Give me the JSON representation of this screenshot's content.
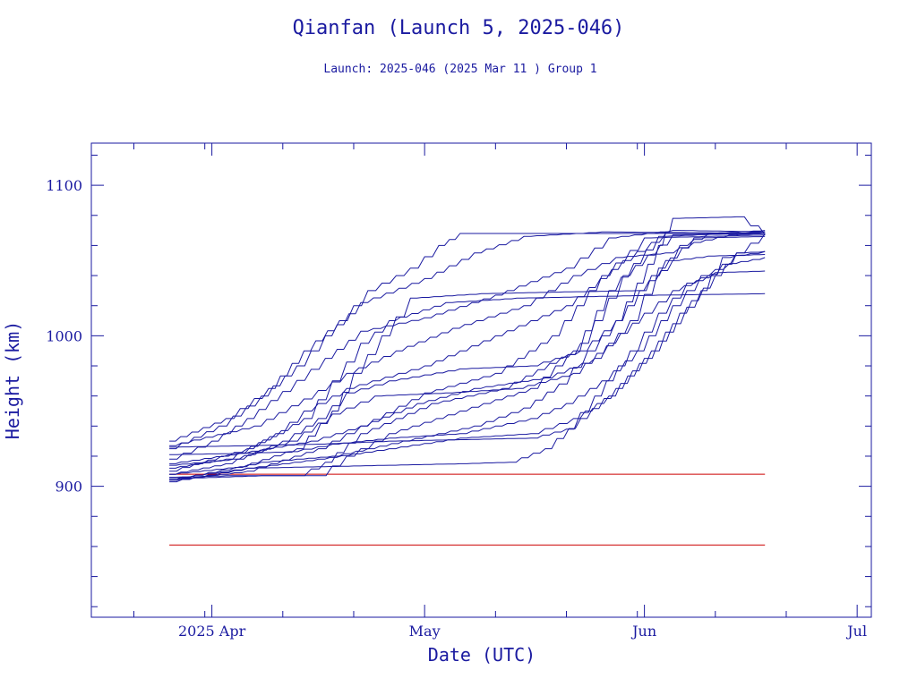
{
  "chart_data": {
    "type": "line",
    "title": "Qianfan (Launch 5, 2025-046)",
    "subtitle": "Launch: 2025-046  (2025 Mar 11 )  Group 1",
    "xlabel": "Date (UTC)",
    "ylabel": "Height (km)",
    "xlim": [
      "2025-03-15",
      "2025-07-03"
    ],
    "ylim": [
      813,
      1128
    ],
    "x_ticks": [
      {
        "date": "2025-04-01",
        "label": "2025 Apr"
      },
      {
        "date": "2025-05-01",
        "label": "May"
      },
      {
        "date": "2025-06-01",
        "label": "Jun"
      },
      {
        "date": "2025-07-01",
        "label": "Jul"
      }
    ],
    "y_ticks": [
      {
        "value": 900,
        "label": "900"
      },
      {
        "value": 1000,
        "label": "1000"
      },
      {
        "value": 1100,
        "label": "1100"
      }
    ],
    "grid": false,
    "colors": {
      "satellites": "#1a1aa0",
      "reference": "#cc0000",
      "frame": "#1a1aa0"
    },
    "reference_lines": [
      {
        "y": 908,
        "x": [
          "2025-03-26",
          "2025-06-18"
        ]
      },
      {
        "y": 861,
        "x": [
          "2025-03-26",
          "2025-06-18"
        ]
      }
    ],
    "series": [
      {
        "points": [
          [
            "2025-03-26",
            906
          ],
          [
            "2025-04-03",
            907
          ],
          [
            "2025-04-13",
            907
          ],
          [
            "2025-04-17",
            916
          ],
          [
            "2025-04-22",
            935
          ],
          [
            "2025-05-02",
            955
          ],
          [
            "2025-05-12",
            965
          ],
          [
            "2025-05-22",
            990
          ],
          [
            "2025-05-27",
            1030
          ],
          [
            "2025-06-03",
            1066
          ],
          [
            "2025-06-18",
            1069
          ]
        ]
      },
      {
        "points": [
          [
            "2025-03-26",
            905
          ],
          [
            "2025-04-08",
            907
          ],
          [
            "2025-04-16",
            907
          ],
          [
            "2025-04-20",
            920
          ],
          [
            "2025-04-26",
            935
          ],
          [
            "2025-05-06",
            950
          ],
          [
            "2025-05-16",
            965
          ],
          [
            "2025-05-23",
            995
          ],
          [
            "2025-05-29",
            1040
          ],
          [
            "2025-06-05",
            1067
          ],
          [
            "2025-06-18",
            1068
          ]
        ]
      },
      {
        "points": [
          [
            "2025-03-26",
            904
          ],
          [
            "2025-04-06",
            910
          ],
          [
            "2025-04-16",
            925
          ],
          [
            "2025-04-22",
            940
          ],
          [
            "2025-05-01",
            962
          ],
          [
            "2025-05-11",
            975
          ],
          [
            "2025-05-19",
            1000
          ],
          [
            "2025-05-26",
            1040
          ],
          [
            "2025-06-01",
            1065
          ],
          [
            "2025-06-18",
            1067
          ]
        ]
      },
      {
        "points": [
          [
            "2025-03-26",
            912
          ],
          [
            "2025-04-03",
            918
          ],
          [
            "2025-04-10",
            935
          ],
          [
            "2025-04-14",
            950
          ],
          [
            "2025-04-20",
            965
          ],
          [
            "2025-05-01",
            980
          ],
          [
            "2025-05-11",
            1000
          ],
          [
            "2025-05-21",
            1020
          ],
          [
            "2025-05-29",
            1050
          ],
          [
            "2025-06-04",
            1068
          ],
          [
            "2025-06-18",
            1068
          ]
        ]
      },
      {
        "points": [
          [
            "2025-03-26",
            918
          ],
          [
            "2025-04-01",
            930
          ],
          [
            "2025-04-06",
            945
          ],
          [
            "2025-04-11",
            963
          ],
          [
            "2025-04-17",
            985
          ],
          [
            "2025-04-22",
            1003
          ],
          [
            "2025-05-01",
            1012
          ],
          [
            "2025-05-11",
            1027
          ],
          [
            "2025-05-21",
            1045
          ],
          [
            "2025-05-27",
            1065
          ],
          [
            "2025-06-05",
            1070
          ],
          [
            "2025-06-18",
            1069
          ]
        ]
      },
      {
        "points": [
          [
            "2025-03-26",
            925
          ],
          [
            "2025-04-02",
            940
          ],
          [
            "2025-04-08",
            960
          ],
          [
            "2025-04-13",
            980
          ],
          [
            "2025-04-17",
            1000
          ],
          [
            "2025-04-22",
            1022
          ],
          [
            "2025-05-01",
            1038
          ],
          [
            "2025-05-08",
            1055
          ],
          [
            "2025-05-15",
            1066
          ],
          [
            "2025-05-26",
            1069
          ],
          [
            "2025-06-18",
            1068
          ]
        ]
      },
      {
        "points": [
          [
            "2025-03-26",
            930
          ],
          [
            "2025-04-03",
            945
          ],
          [
            "2025-04-09",
            965
          ],
          [
            "2025-04-14",
            990
          ],
          [
            "2025-04-19",
            1010
          ],
          [
            "2025-04-23",
            1030
          ],
          [
            "2025-04-29",
            1045
          ],
          [
            "2025-05-03",
            1060
          ],
          [
            "2025-05-06",
            1068
          ],
          [
            "2025-06-18",
            1068
          ]
        ]
      },
      {
        "points": [
          [
            "2025-03-26",
            927
          ],
          [
            "2025-04-07",
            940
          ],
          [
            "2025-04-14",
            958
          ],
          [
            "2025-04-20",
            975
          ],
          [
            "2025-04-27",
            990
          ],
          [
            "2025-05-05",
            1005
          ],
          [
            "2025-05-15",
            1020
          ],
          [
            "2025-05-22",
            1040
          ],
          [
            "2025-05-28",
            1052
          ],
          [
            "2025-06-04",
            1055
          ],
          [
            "2025-06-08",
            1062
          ],
          [
            "2025-06-13",
            1067
          ],
          [
            "2025-06-18",
            1068
          ]
        ]
      },
      {
        "points": [
          [
            "2025-03-26",
            910
          ],
          [
            "2025-04-06",
            925
          ],
          [
            "2025-04-14",
            945
          ],
          [
            "2025-04-18",
            970
          ],
          [
            "2025-04-22",
            995
          ],
          [
            "2025-04-26",
            1010
          ],
          [
            "2025-05-04",
            1022
          ],
          [
            "2025-05-14",
            1025
          ],
          [
            "2025-05-24",
            1026
          ],
          [
            "2025-06-03",
            1027
          ],
          [
            "2025-06-18",
            1028
          ]
        ]
      },
      {
        "points": [
          [
            "2025-03-26",
            908
          ],
          [
            "2025-04-05",
            913
          ],
          [
            "2025-04-13",
            925
          ],
          [
            "2025-04-18",
            950
          ],
          [
            "2025-04-21",
            975
          ],
          [
            "2025-04-25",
            1000
          ],
          [
            "2025-04-29",
            1025
          ],
          [
            "2025-05-09",
            1028
          ],
          [
            "2025-05-19",
            1029
          ],
          [
            "2025-05-31",
            1030
          ],
          [
            "2025-06-05",
            1050
          ],
          [
            "2025-06-10",
            1053
          ],
          [
            "2025-06-18",
            1054
          ]
        ]
      },
      {
        "points": [
          [
            "2025-03-26",
            914
          ],
          [
            "2025-04-04",
            918
          ],
          [
            "2025-04-12",
            930
          ],
          [
            "2025-04-18",
            948
          ],
          [
            "2025-04-24",
            960
          ],
          [
            "2025-05-04",
            962
          ],
          [
            "2025-05-14",
            965
          ],
          [
            "2025-05-22",
            975
          ],
          [
            "2025-05-27",
            995
          ],
          [
            "2025-06-01",
            1015
          ],
          [
            "2025-06-05",
            1030
          ],
          [
            "2025-06-10",
            1040
          ],
          [
            "2025-06-14",
            1055
          ],
          [
            "2025-06-18",
            1068
          ]
        ]
      },
      {
        "points": [
          [
            "2025-03-26",
            921
          ],
          [
            "2025-04-06",
            922
          ],
          [
            "2025-04-12",
            923
          ],
          [
            "2025-04-18",
            928
          ],
          [
            "2025-04-26",
            932
          ],
          [
            "2025-05-06",
            935
          ],
          [
            "2025-05-16",
            945
          ],
          [
            "2025-05-21",
            955
          ],
          [
            "2025-05-26",
            970
          ],
          [
            "2025-05-31",
            990
          ],
          [
            "2025-06-05",
            1020
          ],
          [
            "2025-06-09",
            1040
          ],
          [
            "2025-06-13",
            1048
          ],
          [
            "2025-06-18",
            1052
          ]
        ]
      },
      {
        "points": [
          [
            "2025-03-26",
            926
          ],
          [
            "2025-04-06",
            927
          ],
          [
            "2025-04-16",
            928
          ],
          [
            "2025-04-26",
            930
          ],
          [
            "2025-05-06",
            931
          ],
          [
            "2025-05-16",
            932
          ],
          [
            "2025-05-21",
            938
          ],
          [
            "2025-05-25",
            960
          ],
          [
            "2025-05-30",
            990
          ],
          [
            "2025-06-03",
            1015
          ],
          [
            "2025-06-07",
            1035
          ],
          [
            "2025-06-11",
            1042
          ],
          [
            "2025-06-18",
            1043
          ]
        ]
      },
      {
        "points": [
          [
            "2025-03-26",
            903
          ],
          [
            "2025-04-06",
            912
          ],
          [
            "2025-04-16",
            918
          ],
          [
            "2025-04-26",
            925
          ],
          [
            "2025-05-06",
            932
          ],
          [
            "2025-05-16",
            935
          ],
          [
            "2025-05-22",
            945
          ],
          [
            "2025-05-27",
            960
          ],
          [
            "2025-06-01",
            985
          ],
          [
            "2025-06-05",
            1008
          ],
          [
            "2025-06-09",
            1030
          ],
          [
            "2025-06-12",
            1052
          ],
          [
            "2025-06-18",
            1056
          ]
        ]
      },
      {
        "points": [
          [
            "2025-03-26",
            905
          ],
          [
            "2025-04-06",
            912
          ],
          [
            "2025-04-16",
            913
          ],
          [
            "2025-04-26",
            914
          ],
          [
            "2025-05-06",
            915
          ],
          [
            "2025-05-13",
            916
          ],
          [
            "2025-05-18",
            925
          ],
          [
            "2025-05-23",
            945
          ],
          [
            "2025-05-28",
            965
          ],
          [
            "2025-06-02",
            990
          ],
          [
            "2025-06-06",
            1015
          ],
          [
            "2025-06-11",
            1040
          ],
          [
            "2025-06-14",
            1055
          ],
          [
            "2025-06-18",
            1056
          ]
        ]
      },
      {
        "points": [
          [
            "2025-03-26",
            904
          ],
          [
            "2025-04-08",
            916
          ],
          [
            "2025-04-18",
            920
          ],
          [
            "2025-04-28",
            930
          ],
          [
            "2025-05-08",
            940
          ],
          [
            "2025-05-15",
            952
          ],
          [
            "2025-05-20",
            968
          ],
          [
            "2025-05-24",
            990
          ],
          [
            "2025-05-28",
            1010
          ],
          [
            "2025-05-31",
            1035
          ],
          [
            "2025-06-03",
            1060
          ],
          [
            "2025-06-05",
            1078
          ],
          [
            "2025-06-14",
            1079
          ],
          [
            "2025-06-18",
            1067
          ]
        ]
      },
      {
        "points": [
          [
            "2025-03-26",
            915
          ],
          [
            "2025-04-05",
            922
          ],
          [
            "2025-04-15",
            930
          ],
          [
            "2025-04-22",
            940
          ],
          [
            "2025-04-30",
            955
          ],
          [
            "2025-05-08",
            965
          ],
          [
            "2025-05-18",
            972
          ],
          [
            "2025-05-25",
            985
          ],
          [
            "2025-05-30",
            1010
          ],
          [
            "2025-06-03",
            1045
          ],
          [
            "2025-06-08",
            1065
          ],
          [
            "2025-06-18",
            1066
          ]
        ]
      },
      {
        "points": [
          [
            "2025-03-26",
            908
          ],
          [
            "2025-04-03",
            915
          ],
          [
            "2025-04-11",
            930
          ],
          [
            "2025-04-16",
            945
          ],
          [
            "2025-04-20",
            962
          ],
          [
            "2025-04-26",
            970
          ],
          [
            "2025-05-06",
            978
          ],
          [
            "2025-05-16",
            980
          ],
          [
            "2025-05-23",
            990
          ],
          [
            "2025-05-28",
            1010
          ],
          [
            "2025-06-02",
            1040
          ],
          [
            "2025-06-06",
            1060
          ],
          [
            "2025-06-10",
            1068
          ],
          [
            "2025-06-18",
            1070
          ]
        ]
      }
    ]
  }
}
